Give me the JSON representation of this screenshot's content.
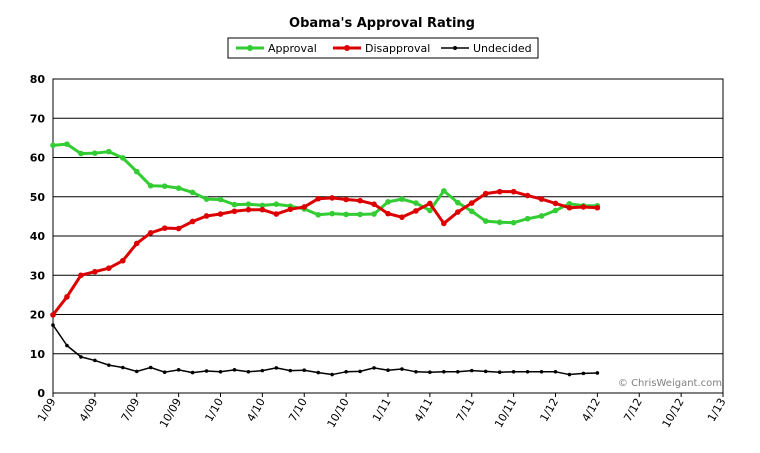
{
  "chart_data": {
    "type": "line",
    "title": "Obama's Approval Rating",
    "credit": "© ChrisWeigant.com",
    "ylim": [
      0,
      80
    ],
    "yticks": [
      0,
      10,
      20,
      30,
      40,
      50,
      60,
      70,
      80
    ],
    "grid": "horizontal",
    "legend": "top-center",
    "xtick_labels": [
      "1/09",
      "4/09",
      "7/09",
      "10/09",
      "1/10",
      "4/10",
      "7/10",
      "10/10",
      "1/11",
      "4/11",
      "7/11",
      "10/11",
      "1/12",
      "4/12",
      "7/12",
      "10/12",
      "1/13"
    ],
    "x": [
      "1/09",
      "2/09",
      "3/09",
      "4/09",
      "5/09",
      "6/09",
      "7/09",
      "8/09",
      "9/09",
      "10/09",
      "11/09",
      "12/09",
      "1/10",
      "2/10",
      "3/10",
      "4/10",
      "5/10",
      "6/10",
      "7/10",
      "8/10",
      "9/10",
      "10/10",
      "11/10",
      "12/10",
      "1/11",
      "2/11",
      "3/11",
      "4/11",
      "5/11",
      "6/11",
      "7/11",
      "8/11",
      "9/11",
      "10/11",
      "11/11",
      "12/11",
      "1/12",
      "2/12",
      "3/12",
      "4/12"
    ],
    "series": [
      {
        "name": "Approval",
        "color": "#33cc33",
        "values": [
          63.1,
          63.4,
          61.0,
          61.1,
          61.5,
          59.9,
          56.4,
          52.8,
          52.7,
          52.2,
          51.1,
          49.4,
          49.3,
          48.0,
          48.1,
          47.8,
          48.1,
          47.6,
          46.9,
          45.4,
          45.7,
          45.5,
          45.5,
          45.6,
          48.7,
          49.4,
          48.4,
          46.5,
          51.5,
          48.5,
          46.3,
          43.8,
          43.5,
          43.4,
          44.4,
          45.1,
          46.5,
          48.2,
          47.7,
          47.7
        ]
      },
      {
        "name": "Disapproval",
        "color": "#dd0000",
        "values": [
          19.9,
          24.5,
          30.0,
          30.9,
          31.8,
          33.7,
          38.1,
          40.8,
          42.0,
          41.9,
          43.7,
          45.1,
          45.6,
          46.3,
          46.7,
          46.7,
          45.6,
          46.8,
          47.4,
          49.5,
          49.7,
          49.3,
          49.0,
          48.1,
          45.7,
          44.8,
          46.4,
          48.3,
          43.2,
          46.1,
          48.4,
          50.8,
          51.3,
          51.3,
          50.3,
          49.4,
          48.3,
          47.2,
          47.4,
          47.2
        ]
      },
      {
        "name": "Undecided",
        "color": "#000000",
        "values": [
          17.3,
          12.1,
          9.2,
          8.3,
          7.1,
          6.5,
          5.5,
          6.5,
          5.3,
          5.9,
          5.2,
          5.6,
          5.4,
          5.9,
          5.4,
          5.7,
          6.4,
          5.7,
          5.8,
          5.2,
          4.7,
          5.4,
          5.5,
          6.4,
          5.8,
          6.1,
          5.4,
          5.3,
          5.4,
          5.4,
          5.7,
          5.5,
          5.3,
          5.4,
          5.4,
          5.4,
          5.4,
          4.7,
          5.0,
          5.1
        ]
      }
    ]
  }
}
